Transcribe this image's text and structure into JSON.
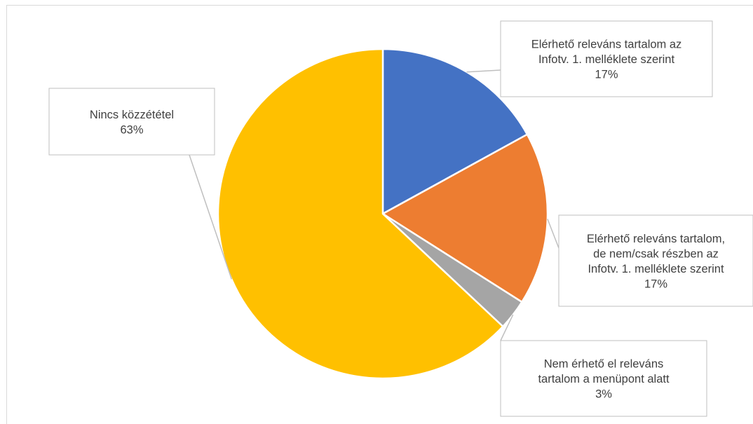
{
  "chart_data": {
    "type": "pie",
    "title": "",
    "slices": [
      {
        "label": "Elérhető releváns tartalom az Infotv. 1. melléklete szerint",
        "percent_label": "17%",
        "value": 17,
        "color": "#4472c4"
      },
      {
        "label": "Elérhető releváns tartalom, de nem/csak részben az Infotv. 1. melléklete szerint",
        "percent_label": "17%",
        "value": 17,
        "color": "#ed7d31"
      },
      {
        "label": "Nem érhető el releváns tartalom a menüpont alatt",
        "percent_label": "3%",
        "value": 3,
        "color": "#a5a5a5"
      },
      {
        "label": "Nincs közzététel",
        "percent_label": "63%",
        "value": 63,
        "color": "#ffc000"
      }
    ]
  },
  "callouts": [
    {
      "lines": [
        "Elérhető releváns tartalom az",
        "Infotv. 1. melléklete szerint"
      ],
      "percent": "17%"
    },
    {
      "lines": [
        "Elérhető releváns tartalom,",
        "de nem/csak részben az",
        "Infotv. 1. melléklete szerint"
      ],
      "percent": "17%"
    },
    {
      "lines": [
        "Nem érhető el releváns",
        "tartalom a menüpont alatt"
      ],
      "percent": "3%"
    },
    {
      "lines": [
        "Nincs közzététel"
      ],
      "percent": "63%"
    }
  ]
}
